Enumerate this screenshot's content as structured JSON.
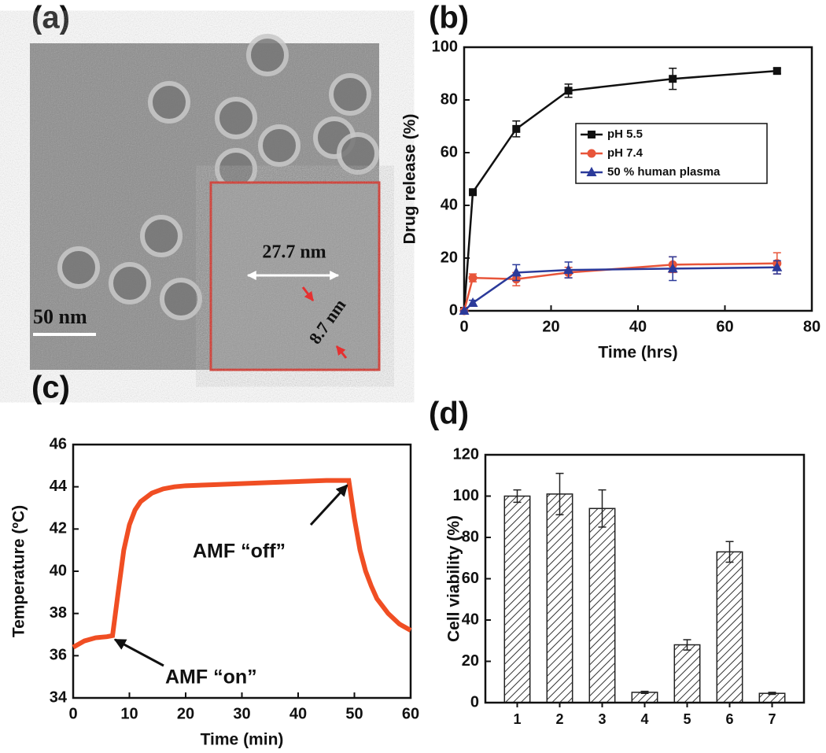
{
  "chart_data": [
    {
      "type": "image",
      "label": "(a)",
      "annotations": [
        "50 nm",
        "27.7 nm",
        "8.7 nm"
      ]
    },
    {
      "type": "line",
      "label": "(b)",
      "x_label": "Time (hrs)",
      "y_label": "Drug release (%)",
      "xlim": [
        0,
        80
      ],
      "xticks": [
        0,
        20,
        40,
        60,
        80
      ],
      "ylim": [
        0,
        100
      ],
      "yticks": [
        0,
        20,
        40,
        60,
        80,
        100
      ],
      "x": [
        0,
        2,
        12,
        24,
        48,
        72
      ],
      "legend": "right",
      "series": [
        {
          "name": "pH 5.5",
          "color": "#111111",
          "marker": "square",
          "values": [
            0,
            45,
            69,
            83.5,
            88,
            91
          ],
          "errors": [
            0,
            0.5,
            3,
            2.5,
            4,
            1
          ]
        },
        {
          "name": "pH 7.4",
          "color": "#e8553a",
          "marker": "circle",
          "values": [
            0,
            12.5,
            12,
            14.5,
            17.5,
            18
          ],
          "errors": [
            0,
            1.5,
            2.5,
            2,
            3,
            4
          ]
        },
        {
          "name": "50 % human plasma",
          "color": "#2b3a9a",
          "marker": "triangle",
          "values": [
            0,
            3,
            14.5,
            15.5,
            16,
            16.5
          ],
          "errors": [
            0,
            1,
            3,
            3,
            4.5,
            2.5
          ]
        }
      ]
    },
    {
      "type": "line",
      "label": "(c)",
      "x_label": "Time (min)",
      "y_label": "Temperature (ºC)",
      "xlim": [
        0,
        60
      ],
      "xticks": [
        0,
        10,
        20,
        30,
        40,
        50,
        60
      ],
      "ylim": [
        34,
        46
      ],
      "yticks": [
        34,
        36,
        38,
        40,
        42,
        44,
        46
      ],
      "x": [
        0,
        2,
        4,
        6,
        7,
        8,
        9,
        10,
        11,
        12,
        14,
        16,
        18,
        20,
        25,
        30,
        35,
        40,
        45,
        48,
        49,
        50,
        51,
        52,
        53,
        54,
        56,
        58,
        60
      ],
      "annotations": [
        "AMF “on”",
        "AMF “off”"
      ],
      "series": [
        {
          "color": "#f04e23",
          "values": [
            36.4,
            36.7,
            36.85,
            36.9,
            36.95,
            39,
            41,
            42.2,
            42.9,
            43.3,
            43.7,
            43.9,
            44.0,
            44.05,
            44.1,
            44.15,
            44.2,
            44.25,
            44.3,
            44.3,
            44.3,
            42.5,
            41,
            40,
            39.3,
            38.7,
            38,
            37.5,
            37.2
          ]
        }
      ]
    },
    {
      "type": "bar",
      "label": "(d)",
      "y_label": "Cell viability (%)",
      "ylim": [
        0,
        120
      ],
      "yticks": [
        0,
        20,
        40,
        60,
        80,
        100,
        120
      ],
      "categories": [
        "1",
        "2",
        "3",
        "4",
        "5",
        "6",
        "7"
      ],
      "values": [
        100,
        101,
        94,
        5,
        28,
        73,
        4.5
      ],
      "errors": [
        3,
        10,
        9,
        0.5,
        2.5,
        5,
        0.5
      ]
    }
  ]
}
